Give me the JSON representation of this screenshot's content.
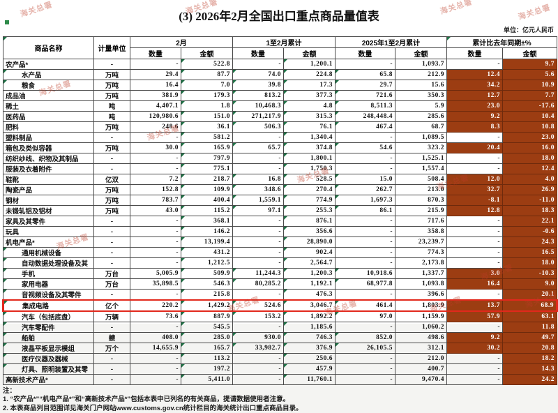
{
  "title": "(3) 2026年2月全国出口重点商品量值表",
  "unit_note": "单位：亿元人民币",
  "watermark": "海关总署",
  "colors": {
    "pct_cell_bg": "#9c3d12",
    "highlight_box": "#e2281c",
    "error_triangle_green": "#1e7145"
  },
  "header": {
    "product": "商品名称",
    "unit": "计量单位",
    "groups": [
      "2月",
      "1至2月累计",
      "2025年1至2月累计",
      "累计比去年同期±%"
    ],
    "qty": "数量",
    "amt": "金额"
  },
  "rows": [
    {
      "name": "农产品*",
      "indent": false,
      "unit": "-",
      "feb_qty": "-",
      "feb_amt": "522.8",
      "cum_qty": "-",
      "cum_amt": "1,200.1",
      "prev_qty": "-",
      "prev_amt": "1,093.7",
      "pct_qty": "-",
      "pct_amt": "9.7",
      "highlight": false
    },
    {
      "name": "水产品",
      "indent": true,
      "unit": "万吨",
      "feb_qty": "29.4",
      "feb_amt": "87.7",
      "cum_qty": "74.0",
      "cum_amt": "224.8",
      "prev_qty": "65.8",
      "prev_amt": "212.9",
      "pct_qty": "12.4",
      "pct_amt": "5.6",
      "highlight": false
    },
    {
      "name": "粮食",
      "indent": true,
      "unit": "万吨",
      "feb_qty": "16.4",
      "feb_amt": "7.0",
      "cum_qty": "39.8",
      "cum_amt": "17.3",
      "prev_qty": "29.7",
      "prev_amt": "15.6",
      "pct_qty": "34.2",
      "pct_amt": "10.9",
      "highlight": false
    },
    {
      "name": "成品油",
      "indent": false,
      "unit": "万吨",
      "feb_qty": "381.9",
      "feb_amt": "179.3",
      "cum_qty": "813.2",
      "cum_amt": "377.3",
      "prev_qty": "721.6",
      "prev_amt": "350.3",
      "pct_qty": "12.7",
      "pct_amt": "7.7",
      "highlight": false
    },
    {
      "name": "稀土",
      "indent": false,
      "unit": "吨",
      "feb_qty": "4,407.1",
      "feb_amt": "1.8",
      "cum_qty": "10,468.3",
      "cum_amt": "4.8",
      "prev_qty": "8,511.3",
      "prev_amt": "5.9",
      "pct_qty": "23.0",
      "pct_amt": "-17.6",
      "highlight": false
    },
    {
      "name": "医药品",
      "indent": false,
      "unit": "吨",
      "feb_qty": "120,980.6",
      "feb_amt": "151.0",
      "cum_qty": "271,217.9",
      "cum_amt": "315.3",
      "prev_qty": "248,448.4",
      "prev_amt": "285.6",
      "pct_qty": "9.2",
      "pct_amt": "10.4",
      "highlight": false
    },
    {
      "name": "肥料",
      "indent": false,
      "unit": "万吨",
      "feb_qty": "248.6",
      "feb_amt": "36.1",
      "cum_qty": "506.3",
      "cum_amt": "76.1",
      "prev_qty": "467.4",
      "prev_amt": "68.7",
      "pct_qty": "8.3",
      "pct_amt": "10.8",
      "highlight": false
    },
    {
      "name": "塑料制品",
      "indent": false,
      "unit": "-",
      "feb_qty": "-",
      "feb_amt": "581.2",
      "cum_qty": "-",
      "cum_amt": "1,340.4",
      "prev_qty": "-",
      "prev_amt": "1,089.5",
      "pct_qty": "-",
      "pct_amt": "23.0",
      "highlight": false
    },
    {
      "name": "箱包及类似容器",
      "indent": false,
      "unit": "万吨",
      "feb_qty": "30.0",
      "feb_amt": "165.9",
      "cum_qty": "65.7",
      "cum_amt": "374.8",
      "prev_qty": "54.6",
      "prev_amt": "323.2",
      "pct_qty": "20.4",
      "pct_amt": "16.0",
      "highlight": false
    },
    {
      "name": "纺织纱线、织物及其制品",
      "indent": false,
      "unit": "-",
      "feb_qty": "-",
      "feb_amt": "797.9",
      "cum_qty": "-",
      "cum_amt": "1,800.1",
      "prev_qty": "-",
      "prev_amt": "1,525.1",
      "pct_qty": "-",
      "pct_amt": "18.0",
      "highlight": false
    },
    {
      "name": "服装及衣着附件",
      "indent": false,
      "unit": "-",
      "feb_qty": "-",
      "feb_amt": "775.1",
      "cum_qty": "-",
      "cum_amt": "1,750.3",
      "prev_qty": "-",
      "prev_amt": "1,557.4",
      "pct_qty": "-",
      "pct_amt": "12.4",
      "highlight": false
    },
    {
      "name": "鞋靴",
      "indent": false,
      "unit": "亿双",
      "feb_qty": "7.2",
      "feb_amt": "218.7",
      "cum_qty": "16.8",
      "cum_amt": "528.5",
      "prev_qty": "15.0",
      "prev_amt": "508.4",
      "pct_qty": "12.0",
      "pct_amt": "4.0",
      "highlight": false
    },
    {
      "name": "陶瓷产品",
      "indent": false,
      "unit": "万吨",
      "feb_qty": "152.8",
      "feb_amt": "109.9",
      "cum_qty": "348.6",
      "cum_amt": "270.4",
      "prev_qty": "262.7",
      "prev_amt": "213.0",
      "pct_qty": "32.7",
      "pct_amt": "26.9",
      "highlight": false
    },
    {
      "name": "钢材",
      "indent": false,
      "unit": "万吨",
      "feb_qty": "783.7",
      "feb_amt": "400.4",
      "cum_qty": "1,559.1",
      "cum_amt": "774.9",
      "prev_qty": "1,697.3",
      "prev_amt": "870.3",
      "pct_qty": "-8.1",
      "pct_amt": "-11.0",
      "highlight": false
    },
    {
      "name": "未锻轧铝及铝材",
      "indent": false,
      "unit": "万吨",
      "feb_qty": "43.0",
      "feb_amt": "115.2",
      "cum_qty": "97.1",
      "cum_amt": "255.3",
      "prev_qty": "86.1",
      "prev_amt": "215.9",
      "pct_qty": "12.8",
      "pct_amt": "18.3",
      "highlight": false
    },
    {
      "name": "家具及其零件",
      "indent": false,
      "unit": "-",
      "feb_qty": "-",
      "feb_amt": "368.1",
      "cum_qty": "-",
      "cum_amt": "876.1",
      "prev_qty": "-",
      "prev_amt": "717.6",
      "pct_qty": "-",
      "pct_amt": "22.1",
      "highlight": false
    },
    {
      "name": "玩具",
      "indent": false,
      "unit": "-",
      "feb_qty": "-",
      "feb_amt": "146.2",
      "cum_qty": "-",
      "cum_amt": "356.6",
      "prev_qty": "-",
      "prev_amt": "358.8",
      "pct_qty": "-",
      "pct_amt": "-0.6",
      "highlight": false
    },
    {
      "name": "机电产品*",
      "indent": false,
      "unit": "-",
      "feb_qty": "-",
      "feb_amt": "13,199.4",
      "cum_qty": "-",
      "cum_amt": "28,890.0",
      "prev_qty": "-",
      "prev_amt": "23,239.7",
      "pct_qty": "-",
      "pct_amt": "24.3",
      "highlight": false
    },
    {
      "name": "通用机械设备",
      "indent": true,
      "unit": "-",
      "feb_qty": "-",
      "feb_amt": "431.2",
      "cum_qty": "-",
      "cum_amt": "902.4",
      "prev_qty": "-",
      "prev_amt": "774.3",
      "pct_qty": "-",
      "pct_amt": "16.5",
      "highlight": false
    },
    {
      "name": "自动数据处理设备及其",
      "indent": true,
      "unit": "-",
      "feb_qty": "-",
      "feb_amt": "1,212.5",
      "cum_qty": "-",
      "cum_amt": "2,564.7",
      "prev_qty": "-",
      "prev_amt": "2,173.8",
      "pct_qty": "-",
      "pct_amt": "18.0",
      "highlight": false
    },
    {
      "name": "手机",
      "indent": true,
      "unit": "万台",
      "feb_qty": "5,005.9",
      "feb_amt": "509.9",
      "cum_qty": "11,244.3",
      "cum_amt": "1,200.3",
      "prev_qty": "10,918.6",
      "prev_amt": "1,337.7",
      "pct_qty": "3.0",
      "pct_amt": "-10.3",
      "highlight": false
    },
    {
      "name": "家用电器",
      "indent": true,
      "unit": "万台",
      "feb_qty": "35,898.5",
      "feb_amt": "546.3",
      "cum_qty": "80,285.2",
      "cum_amt": "1,192.1",
      "prev_qty": "68,977.8",
      "prev_amt": "1,093.8",
      "pct_qty": "16.4",
      "pct_amt": "9.0",
      "highlight": false
    },
    {
      "name": "音视频设备及其零件",
      "indent": true,
      "unit": "-",
      "feb_qty": "-",
      "feb_amt": "215.8",
      "cum_qty": "-",
      "cum_amt": "476.3",
      "prev_qty": "-",
      "prev_amt": "396.6",
      "pct_qty": "-",
      "pct_amt": "20.1",
      "highlight": false
    },
    {
      "name": "集成电路",
      "indent": true,
      "unit": "亿个",
      "feb_qty": "220.2",
      "feb_amt": "1,429.2",
      "cum_qty": "524.6",
      "cum_amt": "3,046.7",
      "prev_qty": "461.4",
      "prev_amt": "1,803.9",
      "pct_qty": "13.7",
      "pct_amt": "68.9",
      "highlight": true
    },
    {
      "name": "汽车（包括底盘）",
      "indent": true,
      "unit": "万辆",
      "feb_qty": "73.6",
      "feb_amt": "887.9",
      "cum_qty": "153.2",
      "cum_amt": "1,892.2",
      "prev_qty": "97.0",
      "prev_amt": "1,159.9",
      "pct_qty": "57.9",
      "pct_amt": "63.1",
      "highlight": false
    },
    {
      "name": "汽车零配件",
      "indent": true,
      "unit": "-",
      "feb_qty": "-",
      "feb_amt": "545.5",
      "cum_qty": "-",
      "cum_amt": "1,185.6",
      "prev_qty": "-",
      "prev_amt": "1,060.2",
      "pct_qty": "-",
      "pct_amt": "11.8",
      "highlight": false
    },
    {
      "name": "船舶",
      "indent": true,
      "unit": "艘",
      "feb_qty": "408.0",
      "feb_amt": "285.0",
      "cum_qty": "930.0",
      "cum_amt": "746.3",
      "prev_qty": "852.0",
      "prev_amt": "498.6",
      "pct_qty": "9.2",
      "pct_amt": "49.7",
      "highlight": false
    },
    {
      "name": "液晶平板显示模组",
      "indent": true,
      "unit": "万个",
      "feb_qty": "14,655.9",
      "feb_amt": "165.7",
      "cum_qty": "33,982.7",
      "cum_amt": "376.9",
      "prev_qty": "26,105.5",
      "prev_amt": "312.1",
      "pct_qty": "30.2",
      "pct_amt": "20.8",
      "highlight": false
    },
    {
      "name": "医疗仪器及器械",
      "indent": true,
      "unit": "-",
      "feb_qty": "-",
      "feb_amt": "113.2",
      "cum_qty": "-",
      "cum_amt": "250.6",
      "prev_qty": "-",
      "prev_amt": "212.0",
      "pct_qty": "-",
      "pct_amt": "18.2",
      "highlight": false
    },
    {
      "name": "灯具、照明装置及其零",
      "indent": true,
      "unit": "-",
      "feb_qty": "-",
      "feb_amt": "197.2",
      "cum_qty": "-",
      "cum_amt": "457.9",
      "prev_qty": "-",
      "prev_amt": "400.7",
      "pct_qty": "-",
      "pct_amt": "14.3",
      "highlight": false
    },
    {
      "name": "高新技术产品*",
      "indent": false,
      "unit": "-",
      "feb_qty": "-",
      "feb_amt": "5,411.0",
      "cum_qty": "-",
      "cum_amt": "11,760.1",
      "prev_qty": "-",
      "prev_amt": "9,470.4",
      "pct_qty": "-",
      "pct_amt": "24.2",
      "highlight": false
    }
  ],
  "notes": {
    "label": "注：",
    "items": [
      "1. “农产品*”“机电产品*”和“高新技术产品*”包括本表中已列名的有关商品，提请数据使用者注意。",
      "2. 本表商品列目范围详见海关门户网站www.customs.gov.cn统计栏目的海关统计出口重点商品目录。"
    ]
  }
}
